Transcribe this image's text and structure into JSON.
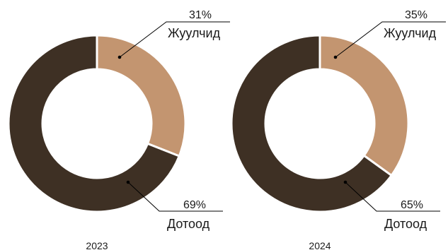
{
  "colors": {
    "Жуулчид": "#c39570",
    "Дотоод": "#3e3024"
  },
  "chart_data": [
    {
      "type": "pie",
      "title": "2023",
      "slices": [
        {
          "label": "Жуулчид",
          "value": 31,
          "value_label": "31%"
        },
        {
          "label": "Дотоод",
          "value": 69,
          "value_label": "69%"
        }
      ]
    },
    {
      "type": "pie",
      "title": "2024",
      "slices": [
        {
          "label": "Жуулчид",
          "value": 35,
          "value_label": "35%"
        },
        {
          "label": "Дотоод",
          "value": 65,
          "value_label": "65%"
        }
      ]
    }
  ]
}
